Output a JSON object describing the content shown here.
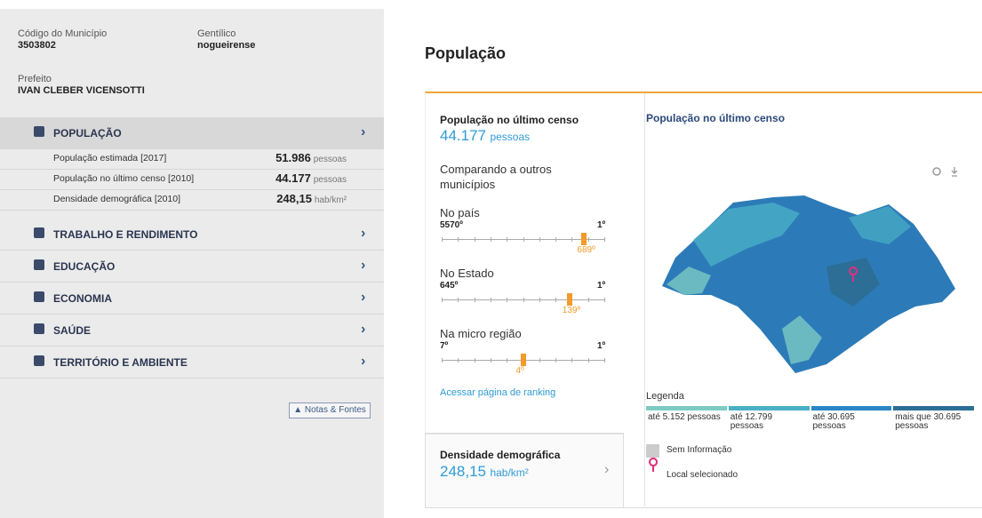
{
  "sidebar": {
    "codigo": {
      "label": "Código do Município",
      "value": "3503802"
    },
    "gentilico": {
      "label": "Gentílico",
      "value": "nogueirense"
    },
    "prefeito": {
      "label": "Prefeito",
      "value": "IVAN CLEBER VICENSOTTI"
    },
    "menu": [
      {
        "label": "POPULAÇÃO",
        "rows": [
          {
            "label": "População estimada [2017]",
            "value": "51.986",
            "unit": "pessoas"
          },
          {
            "label": "População no último censo [2010]",
            "value": "44.177",
            "unit": "pessoas"
          },
          {
            "label": "Densidade demográfica [2010]",
            "value": "248,15",
            "unit": "hab/km²"
          }
        ]
      },
      {
        "label": "TRABALHO E RENDIMENTO"
      },
      {
        "label": "EDUCAÇÃO"
      },
      {
        "label": "ECONOMIA"
      },
      {
        "label": "SAÚDE"
      },
      {
        "label": "TERRITÓRIO E AMBIENTE"
      }
    ],
    "notes_button": "Notas & Fontes"
  },
  "main": {
    "title": "População",
    "census": {
      "label": "População no último censo",
      "value": "44.177",
      "unit": "pessoas"
    },
    "comparing": "Comparando a outros municípios",
    "rankings": [
      {
        "label": "No país",
        "total": "5570º",
        "top": "1º",
        "position": "689º"
      },
      {
        "label": "No Estado",
        "total": "645º",
        "top": "1º",
        "position": "139º"
      },
      {
        "label": "Na micro região",
        "total": "7º",
        "top": "1º",
        "position": "4º"
      }
    ],
    "ranking_link": "Acessar página de ranking",
    "density": {
      "label": "Densidade demográfica",
      "value": "248,15",
      "unit": "hab/km²"
    },
    "map": {
      "title": "População no último censo",
      "legend_title": "Legenda",
      "legend": [
        {
          "label": "até 5.152 pessoas",
          "color": "#7ccbc3"
        },
        {
          "label": "até 12.799 pessoas",
          "color": "#4ab0c6"
        },
        {
          "label": "até 30.695 pessoas",
          "color": "#2a86c6"
        },
        {
          "label": "mais que 30.695 pessoas",
          "color": "#2c6e96"
        }
      ],
      "no_info": "Sem Informação",
      "selected": "Local selecionado"
    }
  }
}
